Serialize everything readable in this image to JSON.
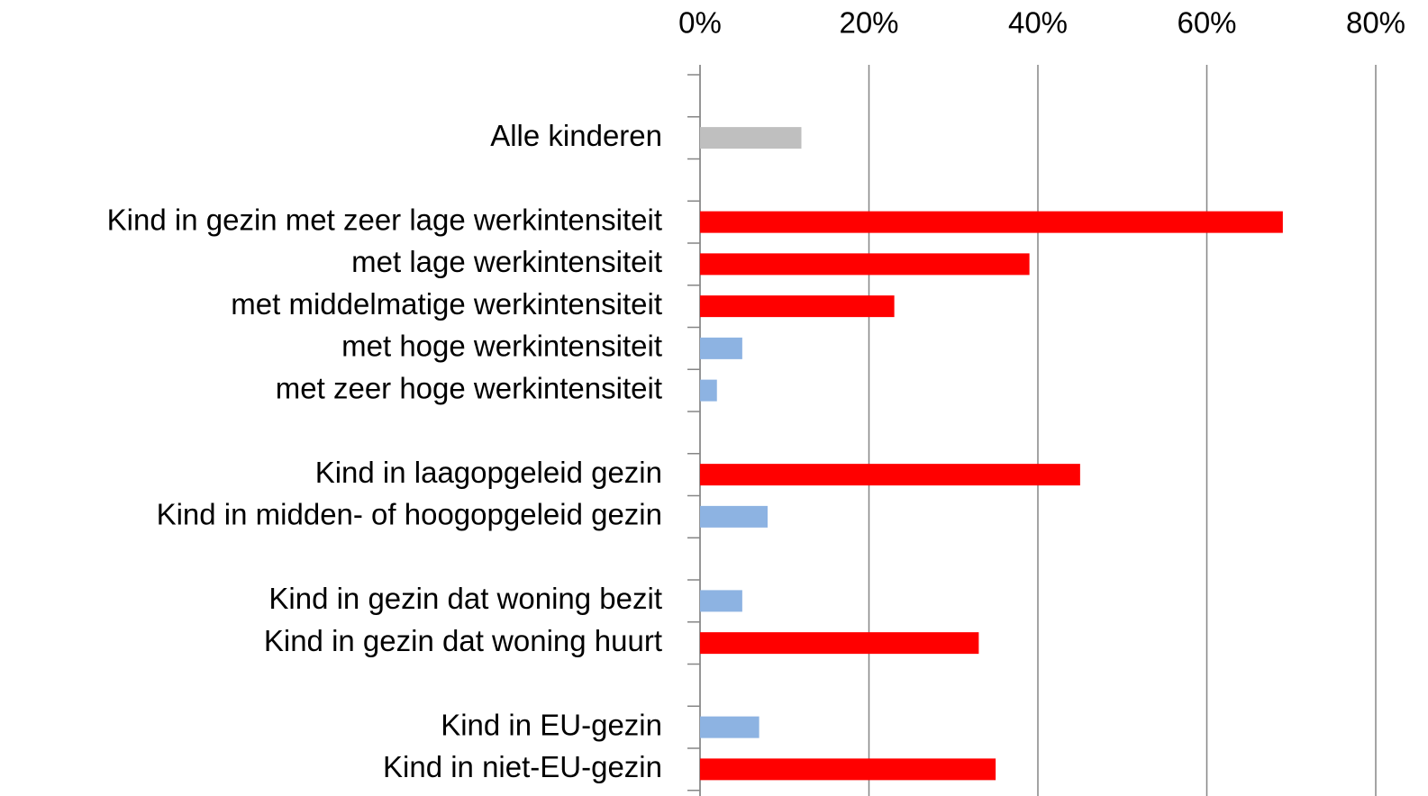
{
  "chart_data": {
    "type": "bar",
    "orientation": "horizontal",
    "categories": [
      null,
      "Alle kinderen",
      null,
      "Kind in gezin met zeer lage werkintensiteit",
      "met lage werkintensiteit",
      "met middelmatige werkintensiteit",
      "met hoge werkintensiteit",
      "met zeer hoge werkintensiteit",
      null,
      "Kind in laagopgeleid gezin",
      "Kind in midden- of hoogopgeleid gezin",
      null,
      "Kind in gezin dat woning bezit",
      "Kind in gezin dat woning huurt",
      null,
      "Kind in EU-gezin",
      "Kind in niet-EU-gezin"
    ],
    "values": [
      null,
      12,
      null,
      69,
      39,
      23,
      5,
      2,
      null,
      45,
      8,
      null,
      5,
      33,
      null,
      7,
      35
    ],
    "colors": [
      null,
      "#bfbfbf",
      null,
      "#ff0000",
      "#ff0000",
      "#ff0000",
      "#8db3e2",
      "#8db3e2",
      null,
      "#ff0000",
      "#8db3e2",
      null,
      "#8db3e2",
      "#ff0000",
      null,
      "#8db3e2",
      "#ff0000"
    ],
    "xlim": [
      0,
      80
    ],
    "xticks": [
      {
        "value": 0,
        "label": "0%"
      },
      {
        "value": 20,
        "label": "20%"
      },
      {
        "value": 40,
        "label": "40%"
      },
      {
        "value": 60,
        "label": "60%"
      },
      {
        "value": 80,
        "label": "80%"
      }
    ],
    "grid": true
  }
}
